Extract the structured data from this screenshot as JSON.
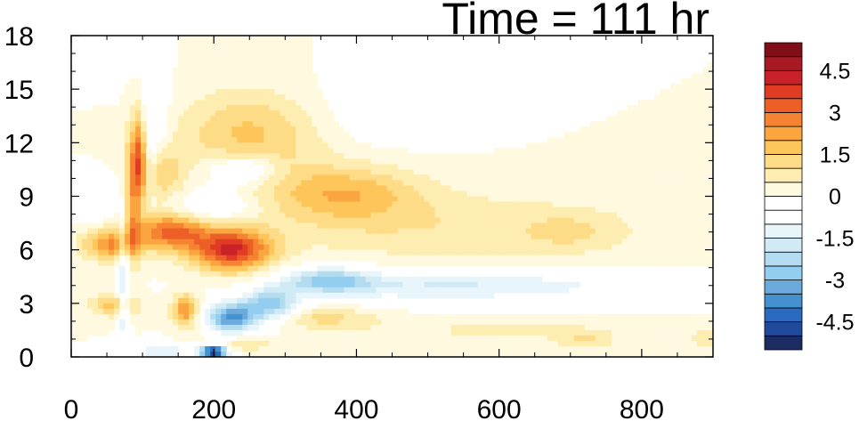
{
  "chart_data": {
    "type": "heatmap",
    "title": "Time = 111 hr",
    "xlabel": "",
    "ylabel": "",
    "xlim": [
      0,
      900
    ],
    "ylim": [
      0,
      18
    ],
    "x_ticks": [
      0,
      200,
      400,
      600,
      800
    ],
    "x_tick_labels": [
      "0",
      "200",
      "400",
      "600",
      "800"
    ],
    "y_ticks": [
      0,
      3,
      6,
      9,
      12,
      15,
      18
    ],
    "y_tick_labels": [
      "0",
      "3",
      "6",
      "9",
      "12",
      "15",
      "18"
    ],
    "colorbar": {
      "levels": [
        -5.5,
        -5,
        -4.5,
        -4,
        -3.5,
        -3,
        -2.5,
        -2,
        -1.5,
        -1,
        -0.5,
        0,
        0.5,
        1,
        1.5,
        2,
        2.5,
        3,
        3.5,
        4,
        4.5,
        5,
        5.5
      ],
      "labels": [
        "4.5",
        "3",
        "1.5",
        "0",
        "-1.5",
        "-3",
        "-4.5"
      ],
      "label_values": [
        4.5,
        3,
        1.5,
        0,
        -1.5,
        -3,
        -4.5
      ],
      "colors": [
        "#1b2c62",
        "#204a9c",
        "#2a6bc0",
        "#4591d0",
        "#6aabdc",
        "#93cdf0",
        "#b4dcf1",
        "#d0eaf6",
        "#e8f5fb",
        "#ffffff",
        "#ffffff",
        "#fff9e0",
        "#feedb0",
        "#fedb86",
        "#fec65a",
        "#fba540",
        "#f68331",
        "#ec5f26",
        "#e03b23",
        "#c92129",
        "#a71a23",
        "#7f0e18"
      ]
    },
    "features": [
      {
        "x": 540,
        "y": 7.2,
        "sx": 280,
        "sy": 2.0,
        "v": 0.9
      },
      {
        "x": 380,
        "y": 9.2,
        "sx": 110,
        "sy": 1.6,
        "v": 1.8
      },
      {
        "x": 250,
        "y": 12.5,
        "sx": 100,
        "sy": 2.4,
        "v": 1.6
      },
      {
        "x": 130,
        "y": 10.2,
        "sx": 30,
        "sy": 1.6,
        "v": 1.4
      },
      {
        "x": 85,
        "y": 9.5,
        "sx": 12,
        "sy": 4.0,
        "v": 2.2
      },
      {
        "x": 96,
        "y": 11.5,
        "sx": 9,
        "sy": 2.8,
        "v": 2.8
      },
      {
        "x": 225,
        "y": 6.0,
        "sx": 55,
        "sy": 1.2,
        "v": 4.0
      },
      {
        "x": 140,
        "y": 7.0,
        "sx": 50,
        "sy": 1.0,
        "v": 3.0
      },
      {
        "x": 55,
        "y": 6.3,
        "sx": 40,
        "sy": 0.9,
        "v": 2.5
      },
      {
        "x": 60,
        "y": 2.9,
        "sx": 35,
        "sy": 0.6,
        "v": 1.7
      },
      {
        "x": 160,
        "y": 2.6,
        "sx": 18,
        "sy": 0.9,
        "v": 2.6
      },
      {
        "x": 350,
        "y": 2.2,
        "sx": 80,
        "sy": 0.6,
        "v": 1.2
      },
      {
        "x": 600,
        "y": 1.5,
        "sx": 200,
        "sy": 0.6,
        "v": 0.6
      },
      {
        "x": 720,
        "y": 0.9,
        "sx": 40,
        "sy": 0.5,
        "v": 1.0
      },
      {
        "x": 700,
        "y": 7.0,
        "sx": 60,
        "sy": 1.0,
        "v": 0.6
      },
      {
        "x": 900,
        "y": 1.0,
        "sx": 40,
        "sy": 0.6,
        "v": 0.8
      },
      {
        "x": 230,
        "y": 0.7,
        "sx": 60,
        "sy": 0.4,
        "v": 1.0
      },
      {
        "x": 500,
        "y": 4.0,
        "sx": 200,
        "sy": 0.9,
        "v": -1.4
      },
      {
        "x": 360,
        "y": 4.3,
        "sx": 60,
        "sy": 0.7,
        "v": -2.3
      },
      {
        "x": 720,
        "y": 4.0,
        "sx": 200,
        "sy": 0.8,
        "v": -0.6
      },
      {
        "x": 280,
        "y": 2.9,
        "sx": 38,
        "sy": 0.9,
        "v": -2.8
      },
      {
        "x": 225,
        "y": 2.2,
        "sx": 35,
        "sy": 0.8,
        "v": -3.8
      },
      {
        "x": 200,
        "y": 0.3,
        "sx": 20,
        "sy": 0.4,
        "v": -5.5
      },
      {
        "x": 130,
        "y": 0.3,
        "sx": 40,
        "sy": 0.5,
        "v": -1.5
      },
      {
        "x": 74,
        "y": 4.5,
        "sx": 8,
        "sy": 4.5,
        "v": -1.8
      },
      {
        "x": 240,
        "y": 10.5,
        "sx": 45,
        "sy": 0.8,
        "v": -1.8
      },
      {
        "x": 110,
        "y": 13.2,
        "sx": 25,
        "sy": 2.8,
        "v": -1.3
      },
      {
        "x": 200,
        "y": 8.5,
        "sx": 60,
        "sy": 1.0,
        "v": -1.2
      },
      {
        "x": 30,
        "y": 8.7,
        "sx": 25,
        "sy": 1.2,
        "v": -1.0
      },
      {
        "x": 440,
        "y": 14.0,
        "sx": 100,
        "sy": 2.0,
        "v": -0.6
      },
      {
        "x": 30,
        "y": 16.5,
        "sx": 50,
        "sy": 1.2,
        "v": -0.7
      }
    ]
  }
}
